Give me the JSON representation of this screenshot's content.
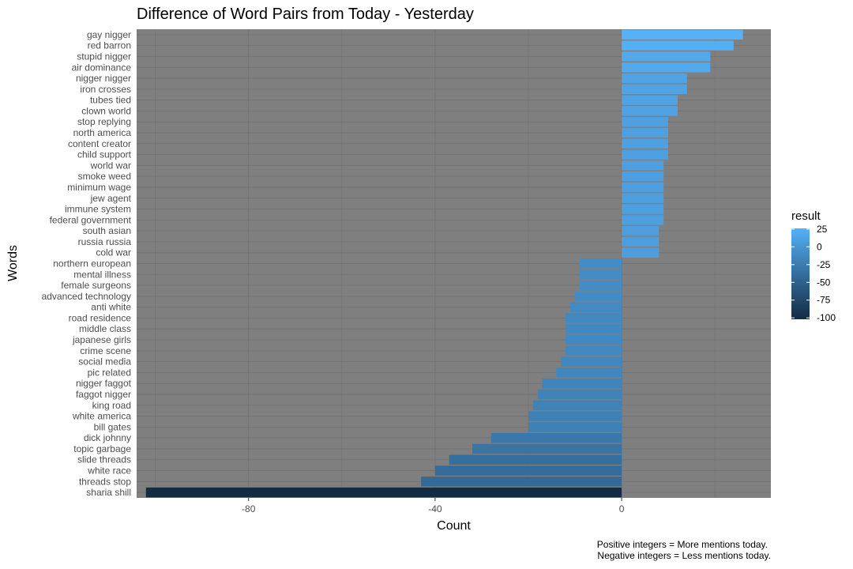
{
  "chart_data": {
    "type": "bar",
    "orientation": "horizontal",
    "title": "Difference of Word Pairs from Today - Yesterday",
    "xlabel": "Count",
    "ylabel": "Words",
    "xlim": [
      -104,
      32
    ],
    "x_ticks": [
      -80,
      -40,
      0
    ],
    "x_tick_labels": [
      "-80",
      "-40",
      "0"
    ],
    "grid": true,
    "legend": {
      "title": "result",
      "placement": "right",
      "labels": [
        "25",
        "0",
        "-25",
        "-50",
        "-75",
        "-100"
      ],
      "values": [
        25,
        0,
        -25,
        -50,
        -75,
        -100
      ],
      "color_low": "#132b43",
      "color_high": "#56b1f7"
    },
    "panel_background": "#7f7f7f",
    "captions": [
      "Positive integers = More mentions today.",
      "Negative integers = Less mentions today."
    ],
    "categories": [
      "gay nigger",
      "red barron",
      "stupid nigger",
      "air dominance",
      "nigger nigger",
      "iron crosses",
      "tubes tied",
      "clown world",
      "stop replying",
      "north america",
      "content creator",
      "child support",
      "world war",
      "smoke weed",
      "minimum wage",
      "jew agent",
      "immune system",
      "federal government",
      "south asian",
      "russia russia",
      "cold war",
      "northern european",
      "mental illness",
      "female surgeons",
      "advanced technology",
      "anti white",
      "road residence",
      "middle class",
      "japanese girls",
      "crime scene",
      "social media",
      "pic related",
      "nigger faggot",
      "faggot nigger",
      "king road",
      "white america",
      "bill gates",
      "dick johnny",
      "topic garbage",
      "slide threads",
      "white race",
      "threads stop",
      "sharia shill"
    ],
    "values": [
      26,
      24,
      19,
      19,
      14,
      14,
      12,
      12,
      10,
      10,
      10,
      10,
      9,
      9,
      9,
      9,
      9,
      9,
      8,
      8,
      8,
      -9,
      -9,
      -9,
      -10,
      -11,
      -12,
      -12,
      -12,
      -12,
      -13,
      -14,
      -17,
      -18,
      -19,
      -20,
      -20,
      -28,
      -32,
      -37,
      -40,
      -43,
      -102
    ]
  }
}
